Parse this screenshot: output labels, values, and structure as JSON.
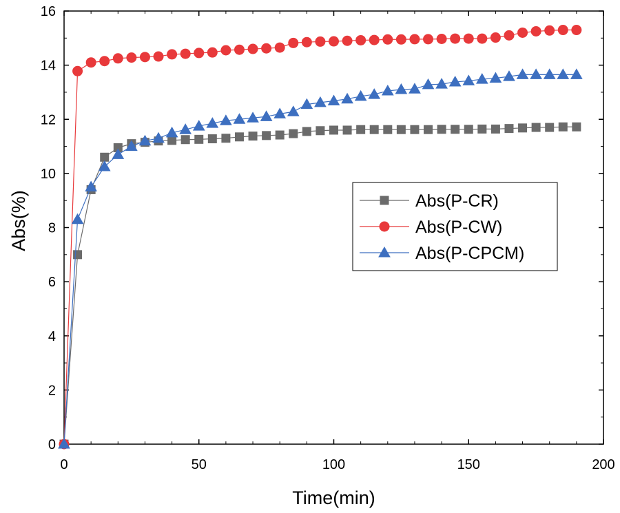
{
  "chart_data": {
    "type": "line",
    "title": "",
    "xlabel": "Time(min)",
    "ylabel": "Abs(%)",
    "xlim": [
      0,
      200
    ],
    "ylim": [
      0,
      16
    ],
    "xticks": [
      0,
      50,
      100,
      150,
      200
    ],
    "yticks": [
      0,
      2,
      4,
      6,
      8,
      10,
      12,
      14,
      16
    ],
    "x_tick_labels": [
      "0",
      "50",
      "100",
      "150",
      "200"
    ],
    "y_tick_labels": [
      "0",
      "2",
      "4",
      "6",
      "8",
      "10",
      "12",
      "14",
      "16"
    ],
    "grid": false,
    "legend_position": "center-right",
    "x": [
      0,
      5,
      10,
      15,
      20,
      25,
      30,
      35,
      40,
      45,
      50,
      55,
      60,
      65,
      70,
      75,
      80,
      85,
      90,
      95,
      100,
      105,
      110,
      115,
      120,
      125,
      130,
      135,
      140,
      145,
      150,
      155,
      160,
      165,
      170,
      175,
      180,
      185,
      190
    ],
    "series": [
      {
        "name": "Abs(P-CR)",
        "color": "#6b6b6b",
        "marker": "square",
        "values": [
          0,
          7.0,
          9.4,
          10.6,
          10.95,
          11.1,
          11.15,
          11.2,
          11.22,
          11.25,
          11.26,
          11.28,
          11.3,
          11.35,
          11.38,
          11.4,
          11.42,
          11.47,
          11.55,
          11.58,
          11.6,
          11.6,
          11.62,
          11.62,
          11.62,
          11.62,
          11.62,
          11.62,
          11.63,
          11.63,
          11.63,
          11.64,
          11.64,
          11.66,
          11.68,
          11.7,
          11.7,
          11.72,
          11.72
        ]
      },
      {
        "name": "Abs(P-CW)",
        "color": "#e8393b",
        "marker": "circle",
        "values": [
          0,
          13.78,
          14.1,
          14.15,
          14.25,
          14.28,
          14.3,
          14.32,
          14.4,
          14.42,
          14.45,
          14.47,
          14.55,
          14.57,
          14.6,
          14.62,
          14.65,
          14.82,
          14.85,
          14.87,
          14.88,
          14.9,
          14.92,
          14.93,
          14.95,
          14.95,
          14.96,
          14.96,
          14.97,
          14.98,
          14.98,
          14.98,
          15.02,
          15.1,
          15.2,
          15.25,
          15.28,
          15.3,
          15.3
        ]
      },
      {
        "name": "Abs(P-CPCM)",
        "color": "#3d6fc0",
        "marker": "triangle",
        "values": [
          0,
          8.3,
          9.5,
          10.25,
          10.7,
          11.0,
          11.2,
          11.3,
          11.5,
          11.62,
          11.75,
          11.85,
          11.95,
          12.0,
          12.05,
          12.1,
          12.2,
          12.28,
          12.55,
          12.62,
          12.68,
          12.75,
          12.85,
          12.92,
          13.05,
          13.1,
          13.12,
          13.28,
          13.3,
          13.38,
          13.42,
          13.48,
          13.52,
          13.58,
          13.65,
          13.65,
          13.65,
          13.65,
          13.65
        ]
      }
    ]
  }
}
